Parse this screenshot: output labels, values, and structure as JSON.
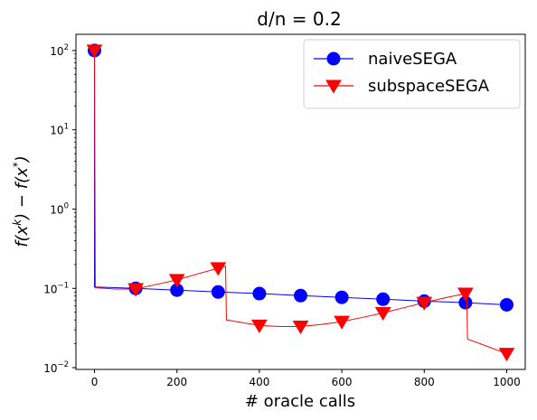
{
  "chart_data": {
    "type": "line",
    "title": "d/n = 0.2",
    "xlabel": "# oracle calls",
    "ylabel": "f(x^k) − f(x^*)",
    "xlim": [
      -45,
      1045
    ],
    "ylim": [
      0.0095,
      160
    ],
    "yscale": "log",
    "grid": false,
    "legend_position": "top-right",
    "x_ticks": [
      0,
      200,
      400,
      600,
      800,
      1000
    ],
    "x_tick_labels": [
      "0",
      "200",
      "400",
      "600",
      "800",
      "1000"
    ],
    "y_ticks": [
      0.01,
      0.1,
      1,
      10,
      100
    ],
    "y_tick_labels": [
      {
        "base": "10",
        "exp": "−2"
      },
      {
        "base": "10",
        "exp": "−1"
      },
      {
        "base": "10",
        "exp": "0"
      },
      {
        "base": "10",
        "exp": "1"
      },
      {
        "base": "10",
        "exp": "2"
      }
    ],
    "series": [
      {
        "name": "naiveSEGA",
        "color": "#0000ff",
        "marker": "circle",
        "x": [
          0,
          0,
          100,
          200,
          300,
          400,
          500,
          600,
          700,
          800,
          900,
          1000
        ],
        "y": [
          100,
          0.104,
          0.1,
          0.095,
          0.09,
          0.086,
          0.081,
          0.077,
          0.073,
          0.069,
          0.066,
          0.062
        ],
        "marker_x": [
          0,
          100,
          200,
          300,
          400,
          500,
          600,
          700,
          800,
          900,
          1000
        ],
        "marker_y": [
          100,
          0.1,
          0.095,
          0.09,
          0.086,
          0.081,
          0.077,
          0.073,
          0.069,
          0.066,
          0.062
        ]
      },
      {
        "name": "subspaceSEGA",
        "color": "#ff0000",
        "marker": "triangle-down",
        "x": [
          0,
          2,
          50,
          100,
          150,
          200,
          250,
          300,
          318,
          320,
          400,
          450,
          500,
          550,
          600,
          650,
          700,
          750,
          800,
          850,
          900,
          903,
          905,
          1000
        ],
        "y": [
          100,
          0.102,
          0.098,
          0.098,
          0.112,
          0.128,
          0.152,
          0.18,
          0.19,
          0.04,
          0.034,
          0.033,
          0.033,
          0.035,
          0.038,
          0.043,
          0.049,
          0.057,
          0.066,
          0.076,
          0.086,
          0.09,
          0.023,
          0.015
        ],
        "marker_x": [
          0,
          100,
          200,
          300,
          400,
          500,
          600,
          700,
          800,
          900,
          1000
        ],
        "marker_y": [
          100,
          0.098,
          0.128,
          0.18,
          0.034,
          0.033,
          0.038,
          0.049,
          0.066,
          0.086,
          0.015
        ]
      }
    ]
  }
}
